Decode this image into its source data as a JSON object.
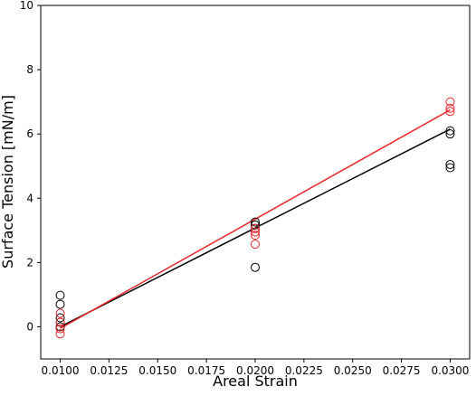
{
  "chart_data": {
    "type": "scatter",
    "xlabel": "Areal Strain",
    "ylabel": "Surface Tension [mN/m]",
    "xlim": [
      0.009,
      0.031
    ],
    "ylim": [
      -1,
      10
    ],
    "xticks": [
      {
        "value": 0.01,
        "label": "0.0100"
      },
      {
        "value": 0.0125,
        "label": "0.0125"
      },
      {
        "value": 0.015,
        "label": "0.0150"
      },
      {
        "value": 0.0175,
        "label": "0.0175"
      },
      {
        "value": 0.02,
        "label": "0.0200"
      },
      {
        "value": 0.0225,
        "label": "0.0225"
      },
      {
        "value": 0.025,
        "label": "0.0250"
      },
      {
        "value": 0.0275,
        "label": "0.0275"
      },
      {
        "value": 0.03,
        "label": "0.0300"
      }
    ],
    "yticks": [
      0,
      2,
      4,
      6,
      8,
      10
    ],
    "series": [
      {
        "kind": "scatter",
        "color": "#000000",
        "x": [
          0.01,
          0.01,
          0.01,
          0.01,
          0.01,
          0.02,
          0.02,
          0.02,
          0.02,
          0.03,
          0.03,
          0.03,
          0.03
        ],
        "values": [
          0.98,
          0.7,
          0.28,
          0.14,
          0.0,
          3.26,
          3.17,
          3.06,
          1.85,
          6.1,
          6.0,
          5.05,
          4.95
        ]
      },
      {
        "kind": "scatter",
        "color": "#e8262a",
        "x": [
          0.01,
          0.01,
          0.01,
          0.01,
          0.02,
          0.02,
          0.02,
          0.02,
          0.03,
          0.03,
          0.03
        ],
        "values": [
          0.42,
          0.14,
          -0.06,
          -0.22,
          3.06,
          2.95,
          2.85,
          2.57,
          7.0,
          6.8,
          6.7
        ]
      },
      {
        "kind": "line",
        "color": "#000000",
        "x": [
          0.01,
          0.03
        ],
        "values": [
          0.0,
          6.15
        ]
      },
      {
        "kind": "line",
        "color": "#e8262a",
        "x": [
          0.01,
          0.03
        ],
        "values": [
          -0.05,
          6.75
        ]
      }
    ]
  }
}
